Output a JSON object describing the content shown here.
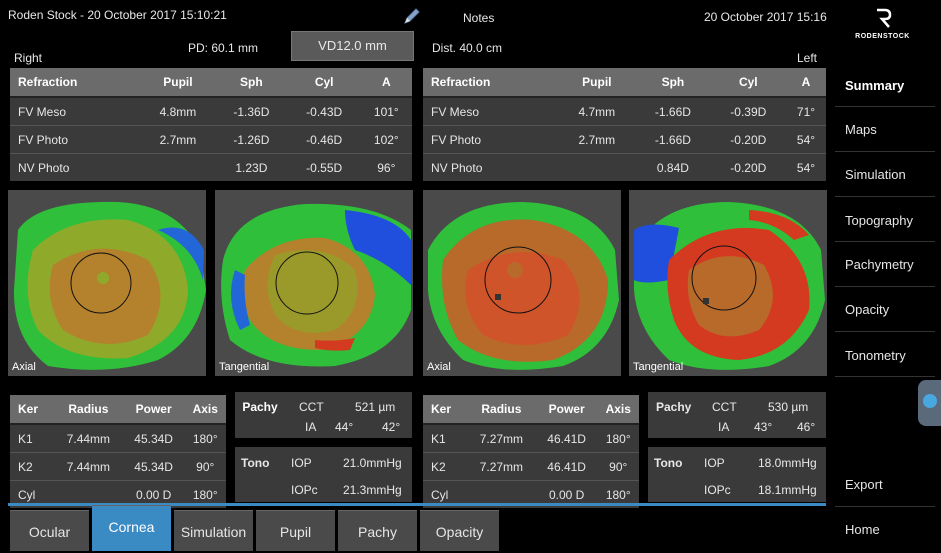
{
  "header": {
    "title": "Roden Stock - 20 October 2017 15:10:21",
    "notes_label": "Notes",
    "datetime": "20 October 2017 15:16",
    "pd": "PD: 60.1 mm",
    "vd": "VD12.0 mm",
    "dist": "Dist. 40.0 cm",
    "right_label": "Right",
    "left_label": "Left",
    "logo_text": "RODENSTOCK"
  },
  "refraction_headers": [
    "Refraction",
    "Pupil",
    "Sph",
    "Cyl",
    "A"
  ],
  "refraction_right": [
    [
      "FV Meso",
      "4.8mm",
      "-1.36D",
      "-0.43D",
      "101°"
    ],
    [
      "FV Photo",
      "2.7mm",
      "-1.26D",
      "-0.46D",
      "102°"
    ],
    [
      "NV Photo",
      "",
      "1.23D",
      "-0.55D",
      "96°"
    ]
  ],
  "refraction_left": [
    [
      "FV Meso",
      "4.7mm",
      "-1.66D",
      "-0.39D",
      "71°"
    ],
    [
      "FV Photo",
      "2.7mm",
      "-1.66D",
      "-0.20D",
      "54°"
    ],
    [
      "NV Photo",
      "",
      "0.84D",
      "-0.20D",
      "54°"
    ]
  ],
  "maps": {
    "axial": "Axial",
    "tangential": "Tangential"
  },
  "ker_headers": [
    "Ker",
    "Radius",
    "Power",
    "Axis"
  ],
  "ker_right": [
    [
      "K1",
      "7.44mm",
      "45.34D",
      "180°"
    ],
    [
      "K2",
      "7.44mm",
      "45.34D",
      "90°"
    ],
    [
      "Cyl",
      "",
      "0.00 D",
      "180°"
    ]
  ],
  "ker_left": [
    [
      "K1",
      "7.27mm",
      "46.41D",
      "180°"
    ],
    [
      "K2",
      "7.27mm",
      "46.41D",
      "90°"
    ],
    [
      "Cyl",
      "",
      "0.00 D",
      "180°"
    ]
  ],
  "pachy_right": {
    "label": "Pachy",
    "cct_label": "CCT",
    "cct": "521 µm",
    "ia_label": "IA",
    "ia1": "44°",
    "ia2": "42°"
  },
  "pachy_left": {
    "label": "Pachy",
    "cct_label": "CCT",
    "cct": "530 µm",
    "ia_label": "IA",
    "ia1": "43°",
    "ia2": "46°"
  },
  "tono_right": {
    "label": "Tono",
    "iop_label": "IOP",
    "iop": "21.0mmHg",
    "iopc_label": "IOPc",
    "iopc": "21.3mmHg"
  },
  "tono_left": {
    "label": "Tono",
    "iop_label": "IOP",
    "iop": "18.0mmHg",
    "iopc_label": "IOPc",
    "iopc": "18.1mmHg"
  },
  "sidebar": {
    "items": [
      "Summary",
      "Maps",
      "Simulation",
      "Topography",
      "Pachymetry",
      "Opacity",
      "Tonometry"
    ],
    "active": "Summary",
    "export": "Export",
    "home": "Home"
  },
  "tabs": [
    "Ocular",
    "Cornea",
    "Simulation",
    "Pupil",
    "Pachy",
    "Opacity"
  ],
  "active_tab": "Cornea",
  "colors": {
    "accent": "#3a8ac4",
    "panel": "#3a3a3a",
    "header": "#6b6b6b"
  }
}
